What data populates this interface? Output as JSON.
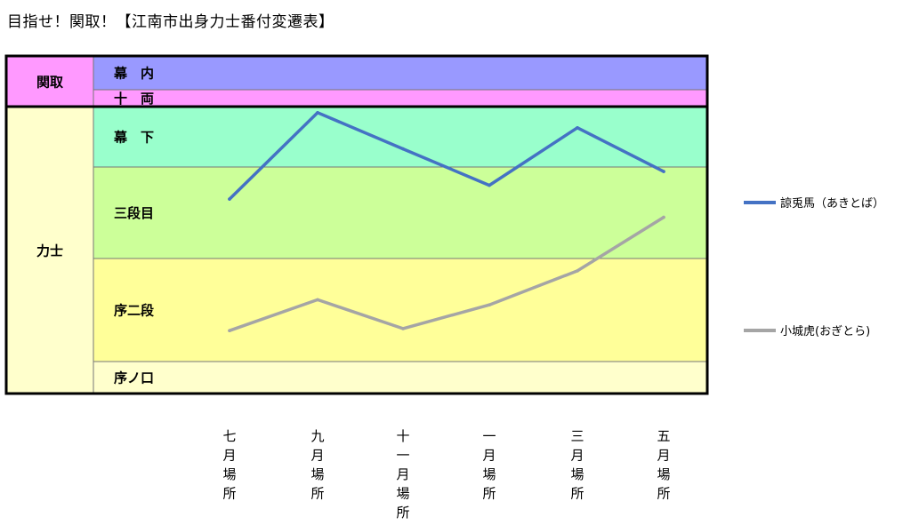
{
  "title": "目指せ！関取！【江南市出身力士番付変遷表】",
  "chart_data": {
    "type": "line",
    "categories": [
      "七月場所",
      "九月場所",
      "十一月場所",
      "一月場所",
      "三月場所",
      "五月場所"
    ],
    "divisions": [
      {
        "group": "関取",
        "name": "幕　内",
        "color": "#9999ff"
      },
      {
        "group": "関取",
        "name": "十　両",
        "color": "#ff99ff"
      },
      {
        "group": "力士",
        "name": "幕　下",
        "color": "#99ffcc"
      },
      {
        "group": "力士",
        "name": "三段目",
        "color": "#ccff99"
      },
      {
        "group": "力士",
        "name": "序二段",
        "color": "#ffff99"
      },
      {
        "group": "力士",
        "name": "序ノ口",
        "color": "#ffffcc"
      }
    ],
    "groups": [
      {
        "name": "関取",
        "color": "#ff99ff"
      },
      {
        "name": "力士",
        "color": "#ffffcc"
      }
    ],
    "y_scale_note": "rank position: 0 = top of 幕内, 6 = bottom of 序ノ口; integer boundaries between divisions",
    "ylim": [
      0,
      6
    ],
    "series": [
      {
        "name": "諒兎馬（あきとば）",
        "color": "#4472c4",
        "values": [
          3.35,
          2.1,
          2.7,
          3.2,
          2.35,
          3.05
        ]
      },
      {
        "name": "小城虎(おぎとら)",
        "color": "#a5a5a5",
        "values": [
          4.7,
          4.4,
          4.68,
          4.45,
          4.12,
          3.55
        ]
      }
    ]
  }
}
